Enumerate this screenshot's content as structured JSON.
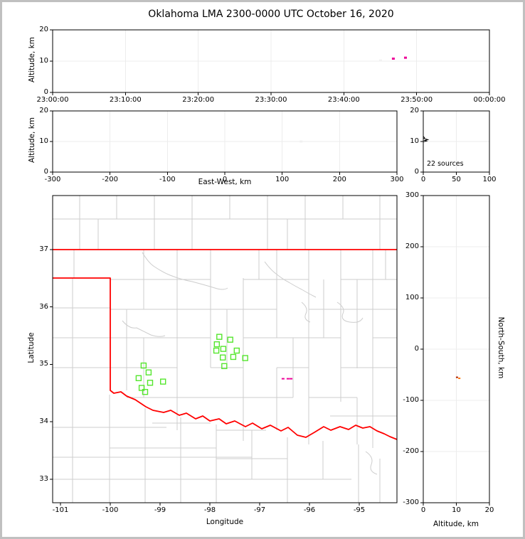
{
  "title": "Oklahoma LMA 2300-0000 UTC October 16, 2020",
  "colors": {
    "grid": "#ececec",
    "frame": "#000000",
    "county_lines": "#cdcdcd",
    "state_boundary": "#ff0000",
    "source_marker": "#55e62e",
    "flash_marker": "#ee0099"
  },
  "chart_data": {
    "type": "scatter",
    "title": "Oklahoma LMA 2300-0000 UTC October 16, 2020",
    "layout": "4-panel LMA plot: time-height, EW-height, altitude histogram, plan map, NS-height",
    "panels": {
      "time_height": {
        "ylabel": "Altitude, km",
        "y_range": [
          0,
          20
        ],
        "y_ticks": [
          0,
          10,
          20
        ],
        "x_ticks": [
          {
            "s": 0,
            "label": "23:00:00"
          },
          {
            "s": 600,
            "label": "23:10:00"
          },
          {
            "s": 1200,
            "label": "23:20:00"
          },
          {
            "s": 1800,
            "label": "23:30:00"
          },
          {
            "s": 2400,
            "label": "23:40:00"
          },
          {
            "s": 3000,
            "label": "23:50:00"
          },
          {
            "s": 3600,
            "label": "00:00:00"
          }
        ],
        "points": [
          {
            "t_s": 2703,
            "alt_km": 10.2,
            "color": "#f2f2f2"
          },
          {
            "t_s": 2808,
            "alt_km": 10.8,
            "color": "#ee0099"
          },
          {
            "t_s": 2908,
            "alt_km": 11.1,
            "color": "#ee0099"
          }
        ]
      },
      "ew_height": {
        "xlabel": "East-West, km",
        "ylabel": "Altitude, km",
        "x_range": [
          -300,
          300
        ],
        "y_range": [
          0,
          20
        ],
        "x_ticks": [
          -300,
          -200,
          -100,
          0,
          100,
          200,
          300
        ],
        "y_ticks": [
          0,
          10,
          20
        ],
        "points": [
          {
            "ew_km": 133,
            "alt_km": 10.0,
            "color": "#f0f0f0"
          }
        ]
      },
      "histogram": {
        "annotation": "22 sources",
        "x_range": [
          0,
          100
        ],
        "y_range": [
          0,
          20
        ],
        "x_ticks": [
          0,
          50,
          100
        ],
        "y_ticks": [
          0,
          10,
          20
        ],
        "profile": [
          {
            "count": 0,
            "alt_km": 11.7
          },
          {
            "count": 2,
            "alt_km": 11.2
          },
          {
            "count": 1,
            "alt_km": 11.0
          },
          {
            "count": 7,
            "alt_km": 10.6
          },
          {
            "count": 2,
            "alt_km": 10.35
          },
          {
            "count": 5,
            "alt_km": 10.15
          },
          {
            "count": 0,
            "alt_km": 9.9
          }
        ]
      },
      "map": {
        "xlabel": "Longitude",
        "ylabel": "Latitude",
        "x_range": [
          -101.16,
          -94.24
        ],
        "y_range": [
          32.59,
          37.94
        ],
        "x_ticks": [
          -101,
          -100,
          -99,
          -98,
          -97,
          -96,
          -95
        ],
        "y_ticks": [
          33,
          34,
          35,
          36,
          37
        ],
        "sources": [
          {
            "lon": -97.81,
            "lat": 35.48
          },
          {
            "lon": -97.59,
            "lat": 35.43
          },
          {
            "lon": -97.86,
            "lat": 35.35
          },
          {
            "lon": -97.73,
            "lat": 35.27
          },
          {
            "lon": -97.87,
            "lat": 35.24
          },
          {
            "lon": -97.46,
            "lat": 35.24
          },
          {
            "lon": -97.53,
            "lat": 35.13
          },
          {
            "lon": -97.29,
            "lat": 35.11
          },
          {
            "lon": -97.74,
            "lat": 35.12
          },
          {
            "lon": -97.71,
            "lat": 34.97
          },
          {
            "lon": -99.33,
            "lat": 34.98
          },
          {
            "lon": -99.23,
            "lat": 34.86
          },
          {
            "lon": -99.43,
            "lat": 34.76
          },
          {
            "lon": -98.94,
            "lat": 34.7
          },
          {
            "lon": -99.2,
            "lat": 34.68
          },
          {
            "lon": -99.37,
            "lat": 34.59
          },
          {
            "lon": -99.3,
            "lat": 34.52
          }
        ],
        "flash_points": [
          {
            "lon": -96.53,
            "lat": 34.75,
            "color": "#ee0099"
          },
          {
            "lon": -96.43,
            "lat": 34.75,
            "color": "#ee0099"
          },
          {
            "lon": -96.37,
            "lat": 34.75,
            "color": "#ee0099"
          }
        ]
      },
      "ns_height": {
        "xlabel": "Altitude, km",
        "ylabel": "North-South, km",
        "x_range": [
          0,
          20
        ],
        "y_range": [
          -300,
          300
        ],
        "x_ticks": [
          0,
          10,
          20
        ],
        "y_ticks": [
          -300,
          -200,
          -100,
          0,
          100,
          200,
          300
        ],
        "points": [
          {
            "alt_km": 10.2,
            "ns_km": -55,
            "color": "#b32400"
          },
          {
            "alt_km": 10.9,
            "ns_km": -57,
            "color": "#ff7700"
          }
        ]
      }
    }
  }
}
